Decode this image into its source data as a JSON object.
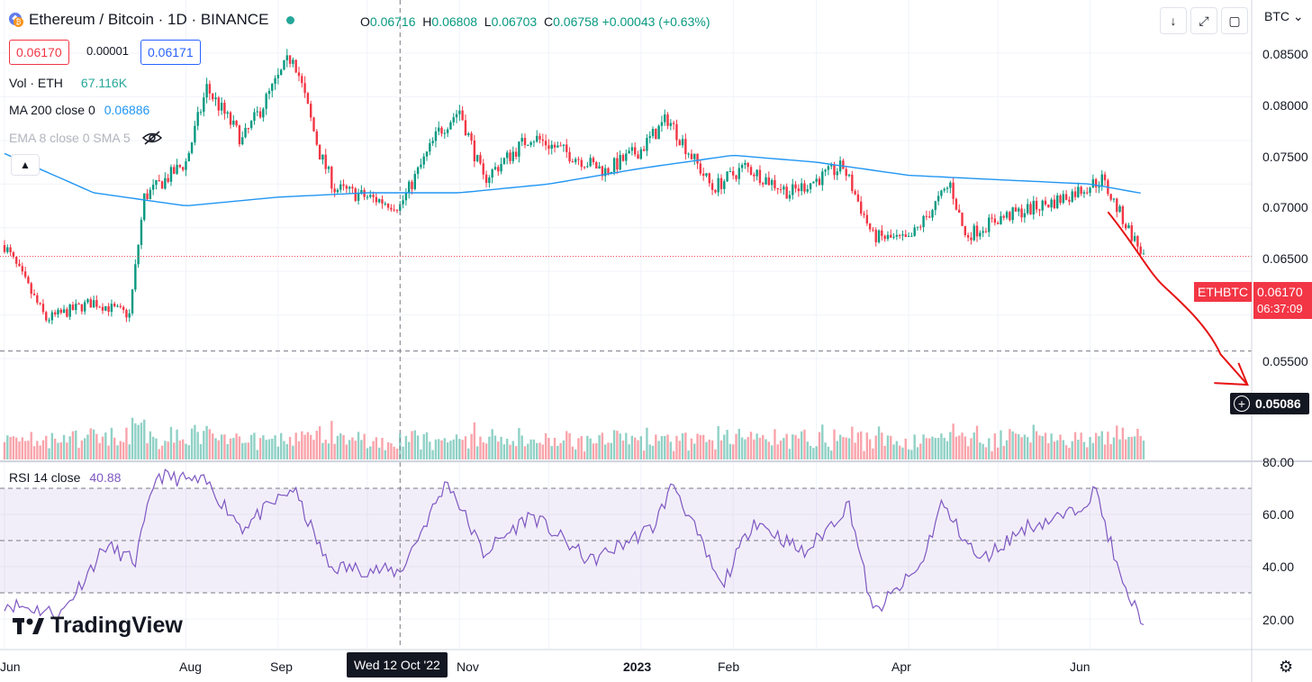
{
  "header": {
    "symbol_title": "Ethereum / Bitcoin · 1D · BINANCE",
    "ohlc": {
      "o_label": "O",
      "o_value": "0.06716",
      "h_label": "H",
      "h_value": "0.06808",
      "l_label": "L",
      "l_value": "0.06703",
      "c_label": "C",
      "c_value": "0.06758",
      "change": "+0.00043 (+0.63%)"
    },
    "sell_price": "0.06170",
    "spread": "0.00001",
    "buy_price": "0.06171",
    "currency_menu": "BTC"
  },
  "indicators": {
    "volume": {
      "label": "Vol · ETH",
      "value": "67.116K"
    },
    "ma": {
      "label": "MA 200 close 0",
      "value": "0.06886"
    },
    "ema": {
      "label": "EMA 8 close 0 SMA 5"
    },
    "rsi": {
      "label": "RSI 14 close",
      "value": "40.88"
    }
  },
  "price_axis": {
    "ticks": [
      "0.08500",
      "0.08000",
      "0.07500",
      "0.07000",
      "0.06500",
      "0.05500"
    ],
    "symbol_badge": "ETHBTC",
    "current_price": "0.06170",
    "countdown": "06:37:09",
    "crosshair_price": "0.05086"
  },
  "rsi_axis": {
    "ticks": [
      "80.00",
      "60.00",
      "40.00",
      "20.00"
    ]
  },
  "time_axis": {
    "ticks": [
      "Jun",
      "Aug",
      "Sep",
      "Nov",
      "2023",
      "Feb",
      "Apr",
      "Jun"
    ],
    "crosshair_date": "Wed 12 Oct '22"
  },
  "branding": {
    "logo_text": "TradingView"
  },
  "colors": {
    "up": "#089981",
    "down": "#f23645",
    "ma": "#2196f3",
    "rsi": "#7e57c2",
    "annotation": "#e61414"
  },
  "chart_data": {
    "type": "candlestick",
    "pair": "ETH/BTC",
    "timeframe": "1D",
    "approx_daily_close": [
      {
        "x": "2022-06-01",
        "y": 0.063
      },
      {
        "x": "2022-06-15",
        "y": 0.0545
      },
      {
        "x": "2022-07-01",
        "y": 0.0565
      },
      {
        "x": "2022-07-13",
        "y": 0.055
      },
      {
        "x": "2022-07-18",
        "y": 0.0685
      },
      {
        "x": "2022-08-01",
        "y": 0.0725
      },
      {
        "x": "2022-08-08",
        "y": 0.081
      },
      {
        "x": "2022-08-20",
        "y": 0.075
      },
      {
        "x": "2022-09-06",
        "y": 0.085
      },
      {
        "x": "2022-09-15",
        "y": 0.0735
      },
      {
        "x": "2022-09-20",
        "y": 0.0695
      },
      {
        "x": "2022-10-12",
        "y": 0.0675
      },
      {
        "x": "2022-10-25",
        "y": 0.076
      },
      {
        "x": "2022-11-01",
        "y": 0.0785
      },
      {
        "x": "2022-11-09",
        "y": 0.0705
      },
      {
        "x": "2022-11-25",
        "y": 0.0755
      },
      {
        "x": "2022-12-20",
        "y": 0.0715
      },
      {
        "x": "2023-01-01",
        "y": 0.074
      },
      {
        "x": "2023-01-10",
        "y": 0.0775
      },
      {
        "x": "2023-01-25",
        "y": 0.0695
      },
      {
        "x": "2023-02-05",
        "y": 0.072
      },
      {
        "x": "2023-02-20",
        "y": 0.069
      },
      {
        "x": "2023-03-10",
        "y": 0.072
      },
      {
        "x": "2023-03-20",
        "y": 0.064
      },
      {
        "x": "2023-04-01",
        "y": 0.0635
      },
      {
        "x": "2023-04-15",
        "y": 0.07
      },
      {
        "x": "2023-04-20",
        "y": 0.064
      },
      {
        "x": "2023-05-01",
        "y": 0.066
      },
      {
        "x": "2023-05-20",
        "y": 0.068
      },
      {
        "x": "2023-06-05",
        "y": 0.0705
      },
      {
        "x": "2023-06-12",
        "y": 0.066
      },
      {
        "x": "2023-06-19",
        "y": 0.0617
      }
    ],
    "ma200": [
      {
        "x": "2022-06-01",
        "y": 0.0735
      },
      {
        "x": "2022-07-01",
        "y": 0.069
      },
      {
        "x": "2022-08-01",
        "y": 0.0675
      },
      {
        "x": "2022-09-01",
        "y": 0.0685
      },
      {
        "x": "2022-10-01",
        "y": 0.069
      },
      {
        "x": "2022-11-01",
        "y": 0.069
      },
      {
        "x": "2022-12-01",
        "y": 0.07
      },
      {
        "x": "2023-01-01",
        "y": 0.0718
      },
      {
        "x": "2023-02-01",
        "y": 0.0733
      },
      {
        "x": "2023-03-01",
        "y": 0.0725
      },
      {
        "x": "2023-04-01",
        "y": 0.071
      },
      {
        "x": "2023-05-01",
        "y": 0.0705
      },
      {
        "x": "2023-06-01",
        "y": 0.07
      },
      {
        "x": "2023-06-19",
        "y": 0.0689
      }
    ],
    "rsi": [
      {
        "x": "2022-06-01",
        "y": 26
      },
      {
        "x": "2022-06-20",
        "y": 22
      },
      {
        "x": "2022-07-05",
        "y": 48
      },
      {
        "x": "2022-07-15",
        "y": 42
      },
      {
        "x": "2022-07-22",
        "y": 75
      },
      {
        "x": "2022-08-08",
        "y": 72
      },
      {
        "x": "2022-08-20",
        "y": 55
      },
      {
        "x": "2022-09-06",
        "y": 70
      },
      {
        "x": "2022-09-18",
        "y": 40
      },
      {
        "x": "2022-10-12",
        "y": 38
      },
      {
        "x": "2022-10-28",
        "y": 73
      },
      {
        "x": "2022-11-09",
        "y": 45
      },
      {
        "x": "2022-11-25",
        "y": 60
      },
      {
        "x": "2022-12-15",
        "y": 42
      },
      {
        "x": "2023-01-05",
        "y": 55
      },
      {
        "x": "2023-01-12",
        "y": 72
      },
      {
        "x": "2023-01-28",
        "y": 32
      },
      {
        "x": "2023-02-08",
        "y": 58
      },
      {
        "x": "2023-02-25",
        "y": 45
      },
      {
        "x": "2023-03-12",
        "y": 64
      },
      {
        "x": "2023-03-20",
        "y": 22
      },
      {
        "x": "2023-04-05",
        "y": 40
      },
      {
        "x": "2023-04-12",
        "y": 64
      },
      {
        "x": "2023-04-25",
        "y": 42
      },
      {
        "x": "2023-05-10",
        "y": 55
      },
      {
        "x": "2023-05-25",
        "y": 60
      },
      {
        "x": "2023-06-03",
        "y": 69
      },
      {
        "x": "2023-06-12",
        "y": 32
      },
      {
        "x": "2023-06-19",
        "y": 19
      }
    ],
    "rsi_bands": {
      "upper": 70,
      "middle": 50,
      "lower": 30
    },
    "ylim_price": [
      0.049,
      0.088
    ],
    "ylim_rsi": [
      10,
      80
    ],
    "crosshair": {
      "x": "2022-10-12",
      "y": 0.05086
    },
    "last_price": 0.0617,
    "annotation": "hand-drawn red arrow projecting further decline toward 0.0509"
  }
}
